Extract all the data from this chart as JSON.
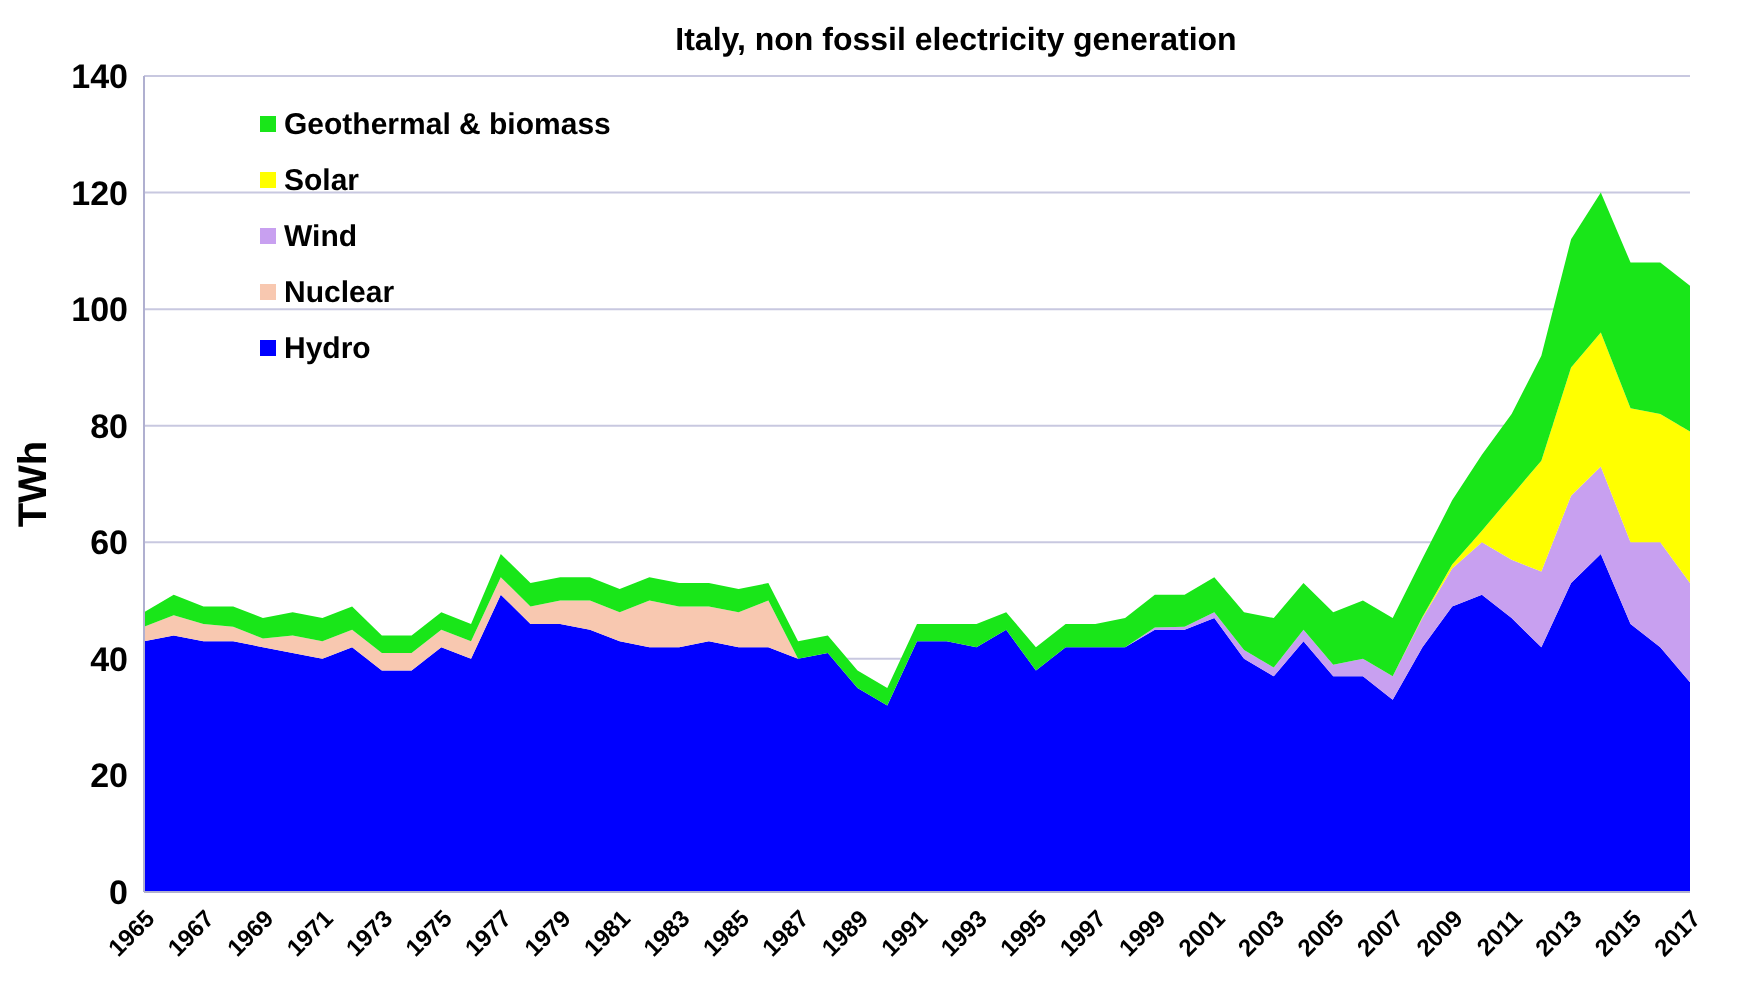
{
  "chart_data": {
    "type": "area",
    "stacked": true,
    "title": "Italy, non fossil electricity generation",
    "ylabel": "TWh",
    "x": [
      1965,
      1966,
      1967,
      1968,
      1969,
      1970,
      1971,
      1972,
      1973,
      1974,
      1975,
      1976,
      1977,
      1978,
      1979,
      1980,
      1981,
      1982,
      1983,
      1984,
      1985,
      1986,
      1987,
      1988,
      1989,
      1990,
      1991,
      1992,
      1993,
      1994,
      1995,
      1996,
      1997,
      1998,
      1999,
      2000,
      2001,
      2002,
      2003,
      2004,
      2005,
      2006,
      2007,
      2008,
      2009,
      2010,
      2011,
      2012,
      2013,
      2014,
      2015,
      2016,
      2017
    ],
    "xlim": [
      1965,
      2017
    ],
    "xticks": [
      1965,
      1967,
      1969,
      1971,
      1973,
      1975,
      1977,
      1979,
      1981,
      1983,
      1985,
      1987,
      1989,
      1991,
      1993,
      1995,
      1997,
      1999,
      2001,
      2003,
      2005,
      2007,
      2009,
      2011,
      2013,
      2015,
      2017
    ],
    "ylim": [
      0,
      140
    ],
    "yticks": [
      0,
      20,
      40,
      60,
      80,
      100,
      120,
      140
    ],
    "grid": "y",
    "legend": "top left",
    "series": [
      {
        "name": "Hydro",
        "color": "#0000ff",
        "values": [
          43,
          44,
          43,
          43,
          42,
          41,
          40,
          42,
          38,
          38,
          42,
          40,
          51,
          46,
          46,
          45,
          43,
          42,
          42,
          43,
          42,
          42,
          40,
          41,
          35,
          32,
          43,
          43,
          42,
          45,
          38,
          42,
          42,
          42,
          45,
          45,
          47,
          40,
          37,
          43,
          37,
          37,
          33,
          42,
          49,
          51,
          47,
          42,
          53,
          58,
          46,
          42,
          36
        ]
      },
      {
        "name": "Nuclear",
        "color": "#f8c8b0",
        "values": [
          2.5,
          3.5,
          3,
          2.5,
          1.5,
          3,
          3,
          3,
          3,
          3,
          3,
          3,
          3,
          3,
          4,
          5,
          5,
          8,
          7,
          6,
          6,
          8,
          0,
          0,
          0,
          0,
          0,
          0,
          0,
          0,
          0,
          0,
          0,
          0,
          0,
          0,
          0,
          0,
          0,
          0,
          0,
          0,
          0,
          0,
          0,
          0,
          0,
          0,
          0,
          0,
          0,
          0,
          0
        ]
      },
      {
        "name": "Wind",
        "color": "#c8a0f0",
        "values": [
          0,
          0,
          0,
          0,
          0,
          0,
          0,
          0,
          0,
          0,
          0,
          0,
          0,
          0,
          0,
          0,
          0,
          0,
          0,
          0,
          0,
          0,
          0,
          0,
          0,
          0,
          0,
          0,
          0,
          0,
          0,
          0,
          0,
          0,
          0.4,
          0.5,
          1,
          1.5,
          1.5,
          2,
          2,
          3,
          4,
          5,
          6.5,
          9,
          10,
          13,
          15,
          15,
          14,
          18,
          17
        ]
      },
      {
        "name": "Solar",
        "color": "#ffff00",
        "values": [
          0,
          0,
          0,
          0,
          0,
          0,
          0,
          0,
          0,
          0,
          0,
          0,
          0,
          0,
          0,
          0,
          0,
          0,
          0,
          0,
          0,
          0,
          0,
          0,
          0,
          0,
          0,
          0,
          0,
          0,
          0,
          0,
          0,
          0,
          0,
          0,
          0,
          0,
          0,
          0,
          0,
          0,
          0,
          0.2,
          0.7,
          2,
          11,
          19,
          22,
          23,
          23,
          22,
          26
        ]
      },
      {
        "name": "Geothermal & biomass",
        "color": "#19e619",
        "values": [
          2.5,
          3.5,
          3,
          3.5,
          3.5,
          4,
          4,
          4,
          3,
          3,
          3,
          3,
          4,
          4,
          4,
          4,
          4,
          4,
          4,
          4,
          4,
          3,
          3,
          3,
          3,
          3,
          3,
          3,
          4,
          3,
          4,
          4,
          4,
          5,
          5.6,
          5.5,
          6,
          6.5,
          8.5,
          8,
          9,
          10,
          10,
          10,
          11,
          13,
          14,
          18,
          22,
          24,
          25,
          26,
          25
        ]
      }
    ]
  }
}
